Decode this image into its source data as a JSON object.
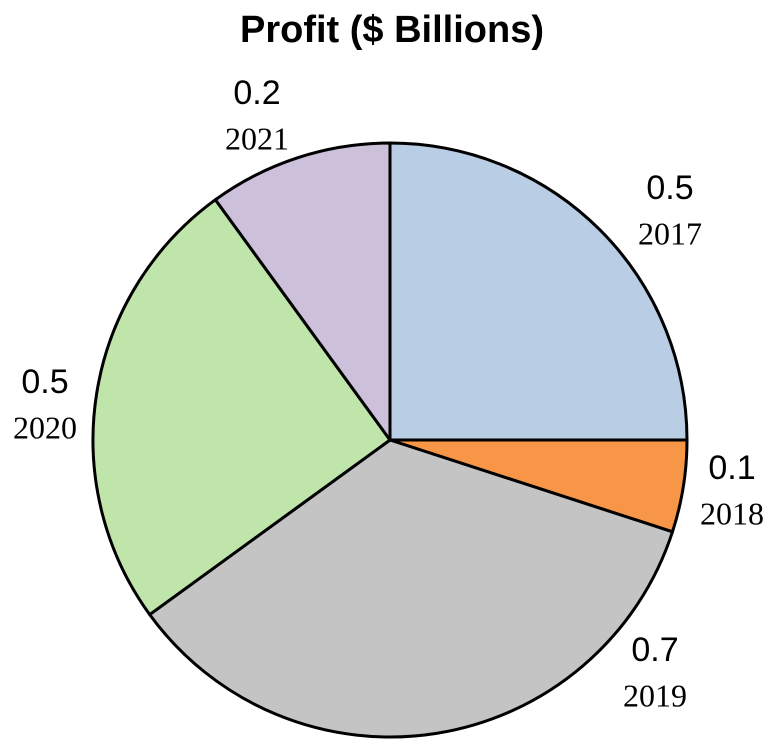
{
  "chart_data": {
    "type": "pie",
    "title": "Profit ($ Billions)",
    "categories": [
      "2017",
      "2018",
      "2019",
      "2020",
      "2021"
    ],
    "values": [
      0.5,
      0.1,
      0.7,
      0.5,
      0.2
    ],
    "colors": [
      "#b9cde5",
      "#f79646",
      "#c4c4c4",
      "#bfe5ab",
      "#ccc0da"
    ]
  }
}
